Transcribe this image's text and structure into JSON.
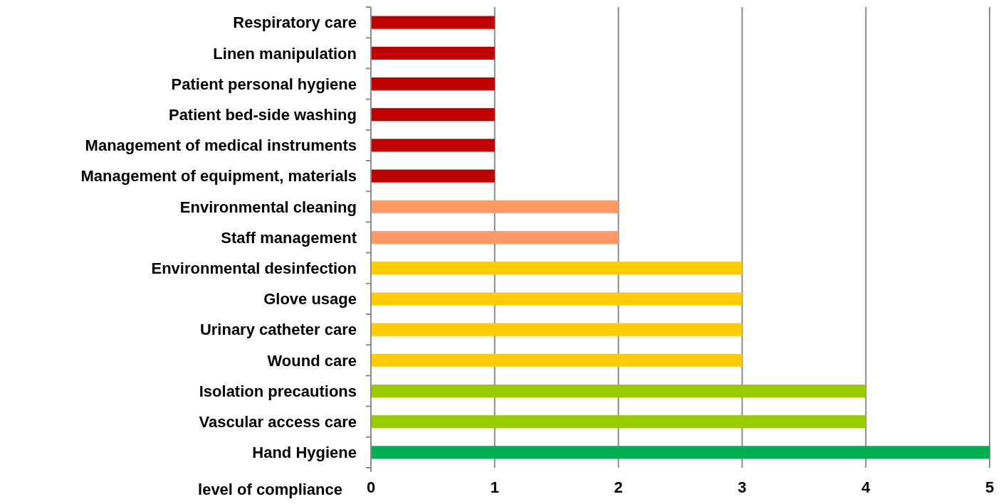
{
  "chart_data": {
    "type": "bar",
    "orientation": "horizontal",
    "xlabel": "level of compliance",
    "categories": [
      "Respiratory care",
      "Linen manipulation",
      "Patient personal hygiene",
      "Patient bed-side washing",
      "Management of medical instruments",
      "Management of equipment, materials",
      "Environmental cleaning",
      "Staff management",
      "Environmental desinfection",
      "Glove usage",
      "Urinary catheter care",
      "Wound care",
      "Isolation precautions",
      "Vascular access care",
      "Hand Hygiene"
    ],
    "values": [
      1,
      1,
      1,
      1,
      1,
      1,
      2,
      2,
      3,
      3,
      3,
      3,
      4,
      4,
      5
    ],
    "colors": [
      "#c00000",
      "#c00000",
      "#c00000",
      "#c00000",
      "#c00000",
      "#c00000",
      "#ff9966",
      "#ff9966",
      "#ffcc00",
      "#ffcc00",
      "#ffcc00",
      "#ffcc00",
      "#99cc00",
      "#99cc00",
      "#00b050"
    ],
    "xlim": [
      0,
      5
    ],
    "xticks": [
      0,
      1,
      2,
      3,
      4,
      5
    ],
    "grid": "x"
  }
}
